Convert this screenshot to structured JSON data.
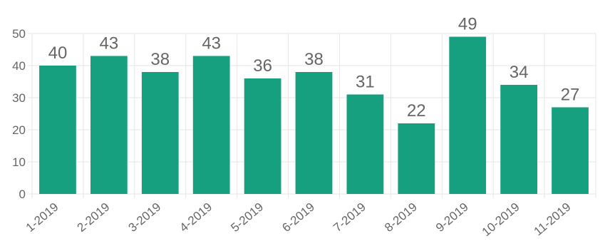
{
  "chart_data": {
    "type": "bar",
    "title": "",
    "xlabel": "",
    "ylabel": "",
    "categories": [
      "1-2019",
      "2-2019",
      "3-2019",
      "4-2019",
      "5-2019",
      "6-2019",
      "7-2019",
      "8-2019",
      "9-2019",
      "10-2019",
      "11-2019"
    ],
    "values": [
      40,
      43,
      38,
      43,
      36,
      38,
      31,
      22,
      49,
      34,
      27
    ],
    "ylim": [
      0,
      50
    ],
    "yticks": [
      0,
      10,
      20,
      30,
      40,
      50
    ],
    "grid": true,
    "data_labels": true,
    "bar_color": "#17a07f",
    "grid_color": "#e6e6e6",
    "label_color": "#666666"
  }
}
